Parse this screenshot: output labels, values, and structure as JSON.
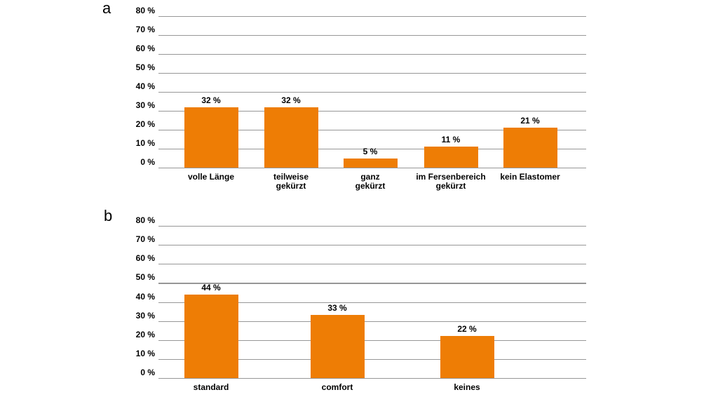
{
  "figure": {
    "background_color": "#ffffff",
    "bar_color": "#EE7D05",
    "gridline_color": "#979797",
    "text_color": "#000000"
  },
  "chart_data": [
    {
      "type": "bar",
      "panel_label": "a",
      "title": "",
      "xlabel": "",
      "ylabel": "",
      "y_unit": "%",
      "ylim": [
        0,
        80
      ],
      "y_tick_step": 10,
      "y_tick_labels": [
        "80 %",
        "70 %",
        "60 %",
        "50 %",
        "40 %",
        "30 %",
        "20 %",
        "10 %",
        "0 %"
      ],
      "grid": "horizontal",
      "legend": "none",
      "categories": [
        "volle Länge",
        "teilweise\ngekürzt",
        "ganz\ngekürzt",
        "im Fersenbereich\ngekürzt",
        "kein Elastomer"
      ],
      "values": [
        32,
        32,
        5,
        11,
        21
      ],
      "value_labels": [
        "32 %",
        "32 %",
        "5 %",
        "11 %",
        "21 %"
      ]
    },
    {
      "type": "bar",
      "panel_label": "b",
      "title": "",
      "xlabel": "",
      "ylabel": "",
      "y_unit": "%",
      "ylim": [
        0,
        80
      ],
      "y_tick_step": 10,
      "y_tick_labels": [
        "80 %",
        "70 %",
        "60 %",
        "50 %",
        "40 %",
        "30 %",
        "20 %",
        "10 %",
        "0 %"
      ],
      "grid": "horizontal",
      "legend": "none",
      "categories": [
        "standard",
        "comfort",
        "keines"
      ],
      "values": [
        44,
        33,
        22
      ],
      "value_labels": [
        "44 %",
        "33 %",
        "22 %"
      ]
    }
  ]
}
